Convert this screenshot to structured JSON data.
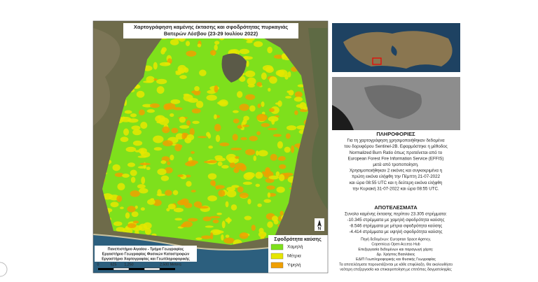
{
  "map": {
    "title": [
      "Χαρτογράφηση καμένης έκτασης και σφοδρότητας πυρκαγιάς",
      "Βατερών Λέσβου (23-29 Ιουλίου 2022)"
    ],
    "legend": {
      "title": "Σφοδρότητα καύσης",
      "items": [
        {
          "label": "Χαμηλή",
          "color": "#7ee01c"
        },
        {
          "label": "Μέτρια",
          "color": "#e6e600"
        },
        {
          "label": "Υψηλή",
          "color": "#f0a000"
        }
      ]
    },
    "credits": [
      "Πανεπιστήμιο Αιγαίου - Τμήμα Γεωγραφίας",
      "Εργαστήριο Γεωγραφίας Φυσικών Καταστροφών",
      "Εργαστήριο Χαρτογραφίας και Γεωπληροφορικής"
    ],
    "scale": [
      "0",
      "625",
      "1,250",
      "2,500 Meters"
    ],
    "north": "N"
  },
  "info": {
    "heading": "ΠΛΗΡΟΦΟΡΙΕΣ",
    "lines": [
      "Για τη χαρτογράφηση χρησιμοποιήθηκαν δεδομένα",
      "του δορυφόρου Sentinel-2B. Εφαρμόστηκε η μέθοδος",
      "Normalized Burn Ratio όπως προτείνεται από το",
      "European Forest Fire Information Service (EFFIS)",
      "μετά από τροποποίηση.",
      "Χρησιμοποιήθηκαν 2 εικόνες και συγκεκριμένα η",
      "πρώτη εικόνα ελήφθη την Πέμπτη 21-07-2022",
      "και ώρα 08:55 UTC και η δεύτερη εικόνα ελήφθη",
      "την Κυριακή 31-07-2022 και ώρα 08:55 UTC."
    ]
  },
  "results": {
    "heading": "ΑΠΟΤΕΛΕΣΜΑΤΑ",
    "lines": [
      "Συνολο καμένης έκτασης περίπου 23.305 στρέμματα:",
      "-10.345 στρέμματα με χαμηλή σφοδρότητα καύσης",
      "-8.546 στρέμματα με μέτρια σφοδρότητα καύσης",
      "-4.414 στρέμματα με υψηλή σφοδρότητα καύσης"
    ]
  },
  "source": {
    "lines": [
      "Πηγή δεδομένων: European Space Agency,",
      "Copernicus Open Access Hub",
      "Επεξεργασία δεδομένων και παραγωγή χάρτη:",
      "Δρ. Χρήστος Βασιλάκος",
      "ΕΔΙΠ Γεωπληροφορικής και Φυσικής Γεωγραφίας",
      "Τα αποτελέσματα παρουσιάζονται με κάθε επιφύλαξη. Θα ακολουθήσει",
      "νεότερη επεξεργασία και επικαιροποίηση με επιτόπιες δειγματοληψίες"
    ]
  }
}
